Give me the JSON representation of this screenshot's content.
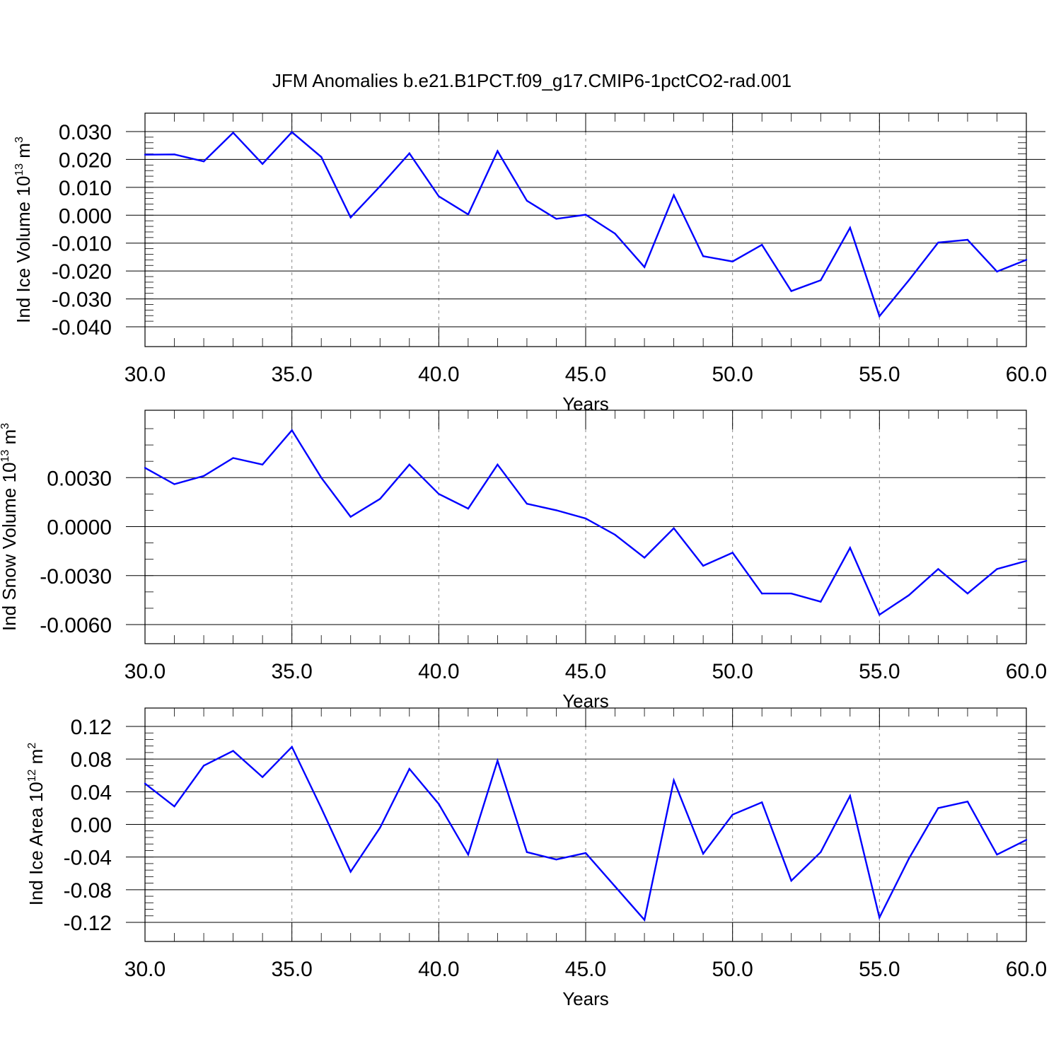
{
  "figure": {
    "title": "JFM Anomalies b.e21.B1PCT.f09_g17.CMIP6-1pctCO2-rad.001",
    "line_color": "#0000ff",
    "grid_color": "#888888"
  },
  "chart_data": [
    {
      "type": "line",
      "title": "JFM Anomalies b.e21.B1PCT.f09_g17.CMIP6-1pctCO2-rad.001",
      "xlabel": "Years",
      "ylabel": {
        "text": "Ind Ice Volume 10",
        "sup": "13",
        "unit": " m",
        "unit_sup": "3"
      },
      "xlim": [
        30,
        60
      ],
      "ylim": [
        -0.04,
        0.03
      ],
      "xticks": [
        30,
        35,
        40,
        45,
        50,
        55,
        60
      ],
      "xtick_labels": [
        "30.0",
        "35.0",
        "40.0",
        "45.0",
        "50.0",
        "55.0",
        "60.0"
      ],
      "yticks": [
        0.03,
        0.02,
        0.01,
        0.0,
        -0.01,
        -0.02,
        -0.03,
        -0.04
      ],
      "ytick_labels": [
        "0.030",
        "0.020",
        "0.010",
        "0.000",
        "-0.010",
        "-0.020",
        "-0.030",
        "-0.040"
      ],
      "y_minor_step": 0.002,
      "grid": "vertical dashed at major x ticks",
      "series": [
        {
          "x": [
            30,
            31,
            32,
            33,
            34,
            35,
            36,
            37,
            38,
            39,
            40,
            41,
            42,
            43,
            44,
            45,
            46,
            47,
            48,
            49,
            50,
            51,
            52,
            53,
            54,
            55,
            56,
            57,
            58,
            59,
            60
          ],
          "values": [
            0.0217,
            0.0218,
            0.0193,
            0.0296,
            0.0184,
            0.0298,
            0.0209,
            -0.0008,
            0.0104,
            0.0222,
            0.0068,
            0.0003,
            0.023,
            0.0052,
            -0.0013,
            0.0002,
            -0.0066,
            -0.0186,
            0.0072,
            -0.0147,
            -0.0166,
            -0.0106,
            -0.0272,
            -0.0233,
            -0.0045,
            -0.0362,
            -0.0233,
            -0.0098,
            -0.0088,
            -0.0202,
            -0.016
          ]
        }
      ]
    },
    {
      "type": "line",
      "xlabel": "Years",
      "ylabel": {
        "text": "Ind Snow Volume 10",
        "sup": "13",
        "unit": " m",
        "unit_sup": "3"
      },
      "xlim": [
        30,
        60
      ],
      "ylim": [
        -0.006,
        0.006
      ],
      "xticks": [
        30,
        35,
        40,
        45,
        50,
        55,
        60
      ],
      "xtick_labels": [
        "30.0",
        "35.0",
        "40.0",
        "45.0",
        "50.0",
        "55.0",
        "60.0"
      ],
      "yticks": [
        0.003,
        0.0,
        -0.003,
        -0.006
      ],
      "ytick_labels": [
        "0.0030",
        "0.0000",
        "-0.0030",
        "-0.0060"
      ],
      "y_minor_step": 0.001,
      "grid": "vertical dashed at major x ticks",
      "series": [
        {
          "x": [
            30,
            31,
            32,
            33,
            34,
            35,
            36,
            37,
            38,
            39,
            40,
            41,
            42,
            43,
            44,
            45,
            46,
            47,
            48,
            49,
            50,
            51,
            52,
            53,
            54,
            55,
            56,
            57,
            58,
            59,
            60
          ],
          "values": [
            0.0036,
            0.0026,
            0.0031,
            0.0042,
            0.0038,
            0.0059,
            0.003,
            0.0006,
            0.0017,
            0.0038,
            0.002,
            0.0011,
            0.0038,
            0.0014,
            0.001,
            0.0005,
            -0.0005,
            -0.0019,
            -0.0001,
            -0.0024,
            -0.0016,
            -0.0041,
            -0.0041,
            -0.0046,
            -0.0013,
            -0.0054,
            -0.0042,
            -0.0026,
            -0.0041,
            -0.0026,
            -0.0021
          ]
        }
      ]
    },
    {
      "type": "line",
      "xlabel": "Years",
      "ylabel": {
        "text": "Ind Ice Area 10",
        "sup": "12",
        "unit": " m",
        "unit_sup": "2"
      },
      "xlim": [
        30,
        60
      ],
      "ylim": [
        -0.12,
        0.12
      ],
      "xticks": [
        30,
        35,
        40,
        45,
        50,
        55,
        60
      ],
      "xtick_labels": [
        "30.0",
        "35.0",
        "40.0",
        "45.0",
        "50.0",
        "55.0",
        "60.0"
      ],
      "yticks": [
        0.12,
        0.08,
        0.04,
        0.0,
        -0.04,
        -0.08,
        -0.12
      ],
      "ytick_labels": [
        "0.12",
        "0.08",
        "0.04",
        "0.00",
        "-0.04",
        "-0.08",
        "-0.12"
      ],
      "y_minor_step": 0.008,
      "grid": "vertical dashed at major x ticks",
      "series": [
        {
          "x": [
            30,
            31,
            32,
            33,
            34,
            35,
            36,
            37,
            38,
            39,
            40,
            41,
            42,
            43,
            44,
            45,
            46,
            47,
            48,
            49,
            50,
            51,
            52,
            53,
            54,
            55,
            56,
            57,
            58,
            59,
            60
          ],
          "values": [
            0.05,
            0.022,
            0.072,
            0.09,
            0.058,
            0.095,
            0.02,
            -0.058,
            -0.004,
            0.068,
            0.025,
            -0.037,
            0.078,
            -0.034,
            -0.043,
            -0.035,
            -0.076,
            -0.117,
            0.054,
            -0.036,
            0.012,
            0.027,
            -0.069,
            -0.034,
            0.035,
            -0.114,
            -0.042,
            0.02,
            0.028,
            -0.037,
            -0.019
          ]
        }
      ]
    }
  ]
}
